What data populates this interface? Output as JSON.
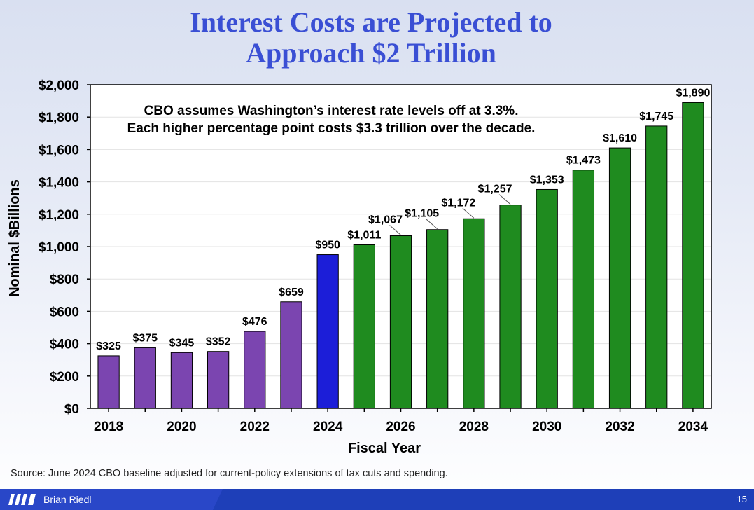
{
  "slide": {
    "title_line1": "Interest Costs are Projected to",
    "title_line2": "Approach $2 Trillion",
    "source": "Source: June 2024 CBO baseline adjusted for current-policy extensions of tax cuts and spending.",
    "author": "Brian Riedl",
    "page_number": "15"
  },
  "colors": {
    "actual": "#7b45b0",
    "current": "#1c1ed8",
    "projected": "#1f8b1f",
    "title": "#3a4fd4",
    "footer": "#1e3fb8"
  },
  "chart_data": {
    "type": "bar",
    "title": "Interest Costs are Projected to Approach $2 Trillion",
    "xlabel": "Fiscal Year",
    "ylabel": "Nominal $Billions",
    "ylim": [
      0,
      2000
    ],
    "yticks": [
      0,
      200,
      400,
      600,
      800,
      1000,
      1200,
      1400,
      1600,
      1800,
      2000
    ],
    "ytick_labels": [
      "$0",
      "$200",
      "$400",
      "$600",
      "$800",
      "$1,000",
      "$1,200",
      "$1,400",
      "$1,600",
      "$1,800",
      "$2,000"
    ],
    "categories": [
      "2018",
      "2019",
      "2020",
      "2021",
      "2022",
      "2023",
      "2024",
      "2025",
      "2026",
      "2027",
      "2028",
      "2029",
      "2030",
      "2031",
      "2032",
      "2033",
      "2034"
    ],
    "xtick_labels": [
      "2018",
      "",
      "2020",
      "",
      "2022",
      "",
      "2024",
      "",
      "2026",
      "",
      "2028",
      "",
      "2030",
      "",
      "2032",
      "",
      "2034"
    ],
    "values": [
      325,
      375,
      345,
      352,
      476,
      659,
      950,
      1011,
      1067,
      1105,
      1172,
      1257,
      1353,
      1473,
      1610,
      1745,
      1890
    ],
    "data_labels": [
      "$325",
      "$375",
      "$345",
      "$352",
      "$476",
      "$659",
      "$950",
      "$1,011",
      "$1,067",
      "$1,105",
      "$1,172",
      "$1,257",
      "$1,353",
      "$1,473",
      "$1,610",
      "$1,745",
      "$1,890"
    ],
    "bar_groups": [
      "actual",
      "actual",
      "actual",
      "actual",
      "actual",
      "actual",
      "current",
      "projected",
      "projected",
      "projected",
      "projected",
      "projected",
      "projected",
      "projected",
      "projected",
      "projected",
      "projected"
    ],
    "annotation_line1": "CBO assumes Washington’s interest rate levels off at 3.3%.",
    "annotation_line2": "Each higher percentage point costs $3.3 trillion over the decade.",
    "grid": true,
    "legend": "none"
  }
}
